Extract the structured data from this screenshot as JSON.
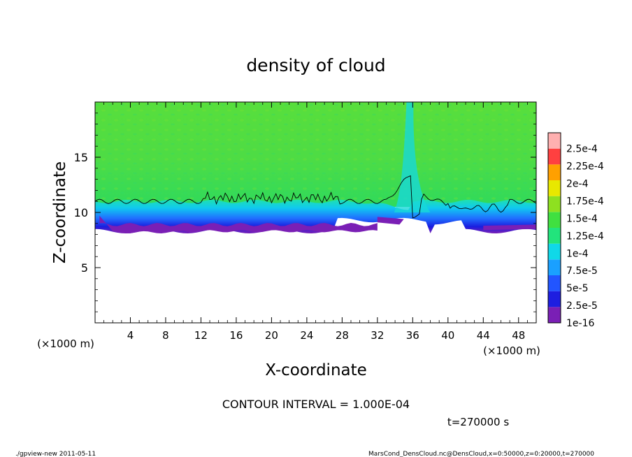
{
  "chart_data": {
    "type": "heatmap",
    "title": "density of cloud",
    "xlabel": "X-coordinate",
    "ylabel": "Z-coordinate",
    "x_unit": "(×1000 m)",
    "y_unit": "(×1000 m)",
    "xlim": [
      0,
      50
    ],
    "ylim": [
      0,
      20
    ],
    "x_ticks": [
      "4",
      "8",
      "12",
      "16",
      "20",
      "24",
      "28",
      "32",
      "36",
      "40",
      "44",
      "48"
    ],
    "y_ticks": [
      "5",
      "10",
      "15"
    ],
    "contour_interval": "CONTOUR INTERVAL = 1.000E-04",
    "time": "t=270000 s",
    "colorbar": {
      "labels": [
        "1e-16",
        "2.5e-5",
        "5e-5",
        "7.5e-5",
        "1e-4",
        "1.25e-4",
        "1.5e-4",
        "1.75e-4",
        "2e-4",
        "2.25e-4",
        "2.5e-4"
      ],
      "colors": [
        "#7a1fb5",
        "#1e1ee0",
        "#2255ff",
        "#1aa0ff",
        "#10d8e8",
        "#22e47c",
        "#40e040",
        "#8ee020",
        "#e8e800",
        "#ffa000",
        "#ff4040",
        "#ffb0b0"
      ]
    },
    "fields": {
      "cloud_top_contour_z": 11.0,
      "cloud_base_z_approx": 8.3,
      "plume_x_approx": 35.5
    }
  },
  "footer": {
    "left": "./gpview-new  2011-05-11",
    "right": "MarsCond_DensCloud.nc@DensCloud,x=0:50000,z=0:20000,t=270000"
  },
  "colors": {
    "background": "#ffffff",
    "axes": "#000000"
  }
}
